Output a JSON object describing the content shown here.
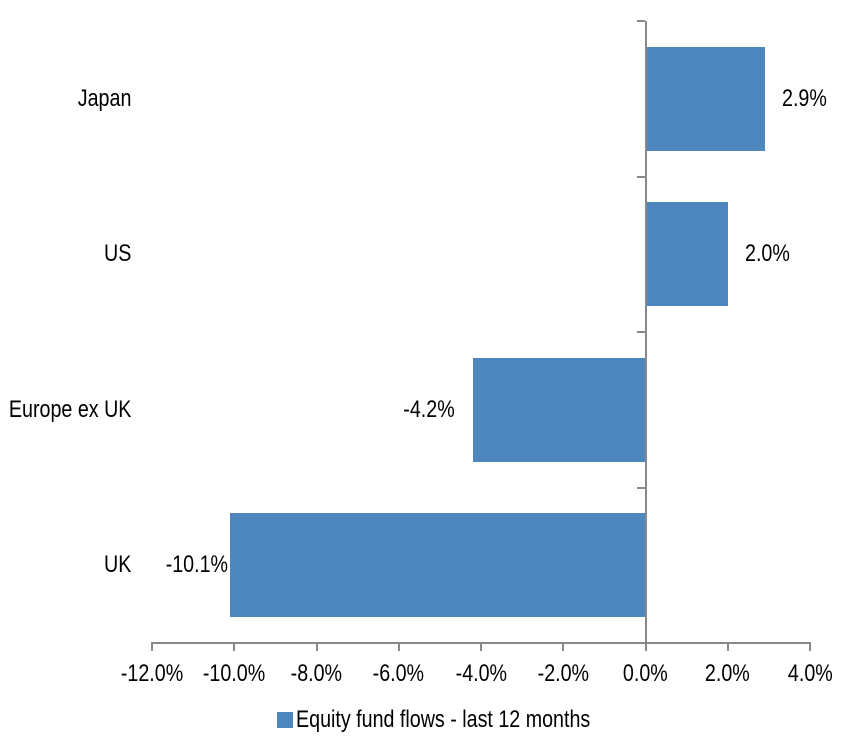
{
  "chart_data": {
    "type": "bar",
    "orientation": "horizontal",
    "title": "",
    "xlabel": "",
    "ylabel": "",
    "categories": [
      "Japan",
      "US",
      "Europe ex UK",
      "UK"
    ],
    "series": [
      {
        "name": "Equity fund flows - last 12 months",
        "values": [
          2.9,
          2.0,
          -4.2,
          -10.1
        ],
        "data_labels": [
          "2.9%",
          "2.0%",
          "-4.2%",
          "-10.1%"
        ]
      }
    ],
    "xlim": [
      -12,
      4
    ],
    "x_ticks": [
      -12,
      -10,
      -8,
      -6,
      -4,
      -2,
      0,
      2,
      4
    ],
    "x_tick_labels": [
      "-12.0%",
      "-10.0%",
      "-8.0%",
      "-6.0%",
      "-4.0%",
      "-2.0%",
      "0.0%",
      "2.0%",
      "4.0%"
    ],
    "grid": "off",
    "legend_position": "bottom-center",
    "colors": {
      "bar": "#4E87BD",
      "axis": "#898989",
      "text": "#000000",
      "background": "#FFFFFF"
    }
  },
  "legend": {
    "label": "Equity fund flows - last 12 months"
  }
}
